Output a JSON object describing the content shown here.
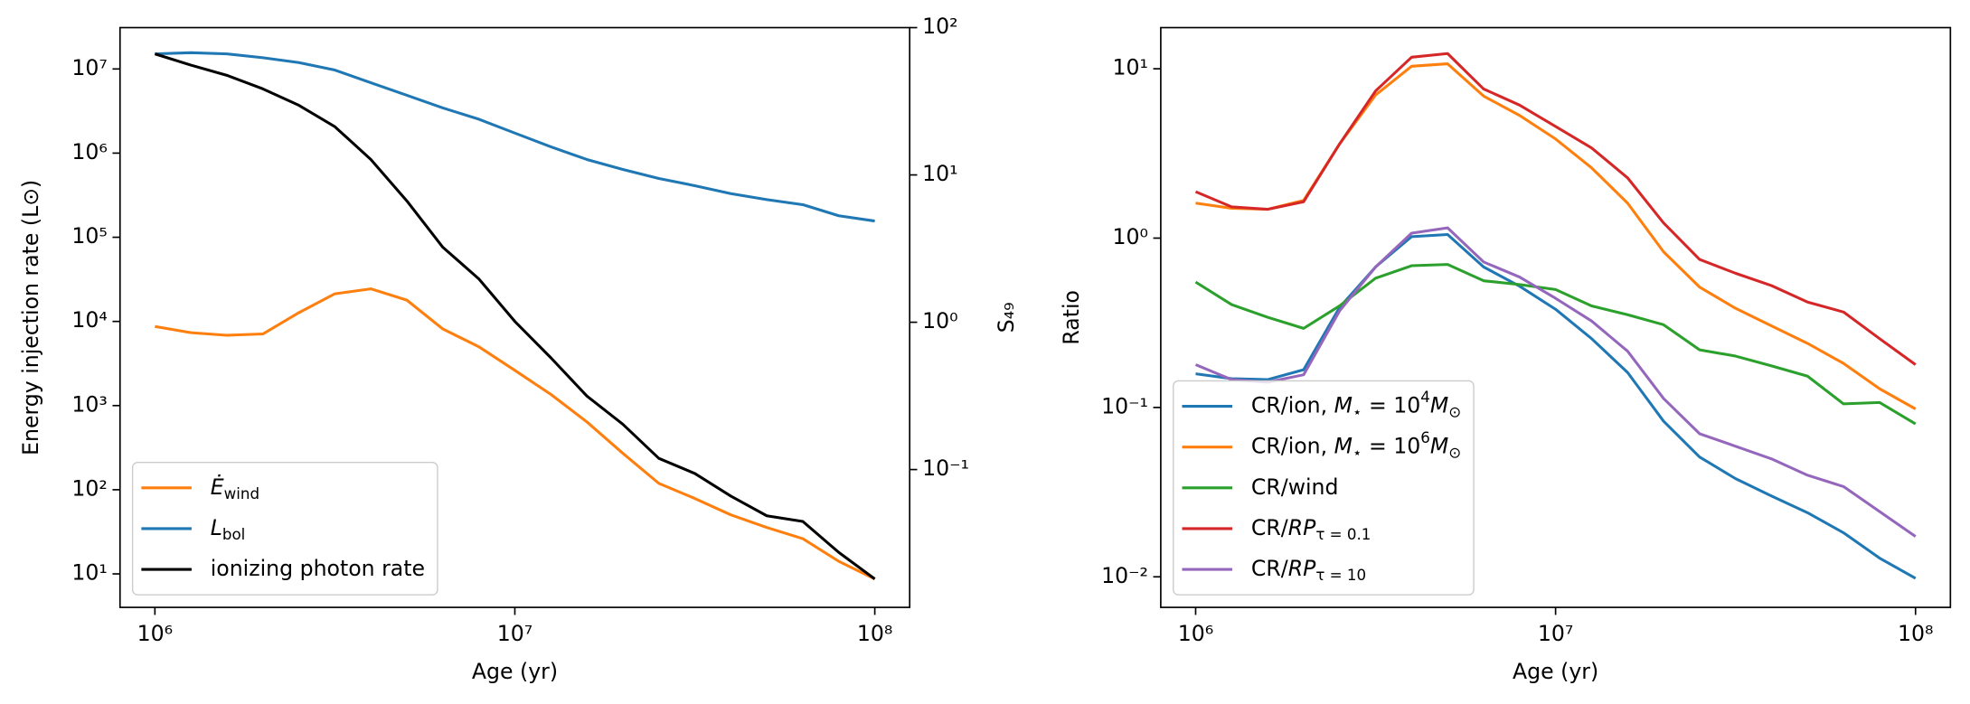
{
  "chart_data": [
    {
      "type": "line",
      "xlabel": "Age (yr)",
      "ylabel": "Energy injection rate (L⊙)",
      "y2label": "S₄₉",
      "xscale": "log",
      "yscale": "log",
      "y2scale": "log",
      "legend": "lower left",
      "xlim": [
        800000,
        125000000
      ],
      "ylim": [
        4,
        31000000
      ],
      "y2lim": [
        0.0116,
        100
      ],
      "xticks": [
        {
          "value": 1000000,
          "label": "10⁶"
        },
        {
          "value": 10000000,
          "label": "10⁷"
        },
        {
          "value": 100000000,
          "label": "10⁸"
        }
      ],
      "yticks": [
        {
          "value": 10,
          "label": "10¹"
        },
        {
          "value": 100,
          "label": "10²"
        },
        {
          "value": 1000,
          "label": "10³"
        },
        {
          "value": 10000,
          "label": "10⁴"
        },
        {
          "value": 100000,
          "label": "10⁵"
        },
        {
          "value": 1000000,
          "label": "10⁶"
        },
        {
          "value": 10000000,
          "label": "10⁷"
        }
      ],
      "y2ticks": [
        {
          "value": 0.1,
          "label": "10⁻¹"
        },
        {
          "value": 1,
          "label": "10⁰"
        },
        {
          "value": 10,
          "label": "10¹"
        },
        {
          "value": 100,
          "label": "10²"
        }
      ],
      "x": [
        1000000,
        1258925,
        1584893,
        1995262,
        2511886,
        3162278,
        3981072,
        5011872,
        6309573,
        7943282,
        10000000,
        12589254,
        15848932,
        19952623,
        25118864,
        31622777,
        39810717,
        50118723,
        63095734,
        79432823,
        100000000
      ],
      "series": [
        {
          "name": [
            {
              "text": "Ė",
              "italic": true
            },
            {
              "text": "wind",
              "sub": true
            }
          ],
          "color": "#ff7f0e",
          "axis": "y",
          "values": [
            8700,
            7350,
            6850,
            7100,
            12700,
            21300,
            24400,
            17900,
            8130,
            5000,
            2620,
            1360,
            640,
            271,
            119,
            78.7,
            50.3,
            35.6,
            26.2,
            14.1,
            8.7
          ]
        },
        {
          "name": [
            {
              "text": "L",
              "italic": true
            },
            {
              "text": "bol",
              "sub": true
            }
          ],
          "color": "#1f77b4",
          "axis": "y",
          "values": [
            15100000,
            15600000,
            15100000,
            13600000,
            11900000,
            9700000,
            6850000,
            4860000,
            3440000,
            2530000,
            1730000,
            1190000,
            840000,
            640000,
            500000,
            410000,
            330000,
            280000,
            244000,
            180000,
            156000
          ]
        },
        {
          "name": [
            {
              "text": "ionizing photon rate"
            }
          ],
          "color": "#000000",
          "axis": "y",
          "values": [
            15100000,
            11100000,
            8400000,
            5800000,
            3700000,
            2060000,
            840000,
            270000,
            76000,
            32000,
            10000,
            3700,
            1300,
            600,
            236,
            156,
            84,
            49,
            42,
            18,
            8.7
          ]
        }
      ]
    },
    {
      "type": "line",
      "xlabel": "Age (yr)",
      "ylabel": "Ratio",
      "xscale": "log",
      "yscale": "log",
      "legend": "lower left",
      "xlim": [
        800000,
        125000000
      ],
      "ylim": [
        0.0066,
        17.5
      ],
      "xticks": [
        {
          "value": 1000000,
          "label": "10⁶"
        },
        {
          "value": 10000000,
          "label": "10⁷"
        },
        {
          "value": 100000000,
          "label": "10⁸"
        }
      ],
      "yticks": [
        {
          "value": 0.01,
          "label": "10⁻²"
        },
        {
          "value": 0.1,
          "label": "10⁻¹"
        },
        {
          "value": 1,
          "label": "10⁰"
        },
        {
          "value": 10,
          "label": "10¹"
        }
      ],
      "x": [
        1000000,
        1258925,
        1584893,
        1995262,
        2511886,
        3162278,
        3981072,
        5011872,
        6309573,
        7943282,
        10000000,
        12589254,
        15848932,
        19952623,
        25118864,
        31622777,
        39810717,
        50118723,
        63095734,
        79432823,
        100000000
      ],
      "series": [
        {
          "name": [
            {
              "text": "CR/ion, "
            },
            {
              "text": "M",
              "italic": true
            },
            {
              "text": "⋆",
              "sub": true
            },
            {
              "text": " = 10"
            },
            {
              "text": "4",
              "sup": true
            },
            {
              "text": "M",
              "italic": true
            },
            {
              "text": "⊙",
              "sub": true
            }
          ],
          "color": "#1f77b4",
          "values": [
            0.158,
            0.148,
            0.146,
            0.167,
            0.39,
            0.676,
            1.02,
            1.05,
            0.676,
            0.52,
            0.38,
            0.255,
            0.161,
            0.083,
            0.051,
            0.038,
            0.03,
            0.0239,
            0.0182,
            0.0129,
            0.0098
          ]
        },
        {
          "name": [
            {
              "text": "CR/ion, "
            },
            {
              "text": "M",
              "italic": true
            },
            {
              "text": "⋆",
              "sub": true
            },
            {
              "text": " = 10"
            },
            {
              "text": "6",
              "sup": true
            },
            {
              "text": "M",
              "italic": true
            },
            {
              "text": "⊙",
              "sub": true
            }
          ],
          "color": "#ff7f0e",
          "values": [
            1.61,
            1.5,
            1.48,
            1.67,
            3.6,
            7.0,
            10.35,
            10.7,
            6.9,
            5.3,
            3.85,
            2.6,
            1.61,
            0.83,
            0.514,
            0.385,
            0.303,
            0.239,
            0.182,
            0.129,
            0.098
          ]
        },
        {
          "name": [
            {
              "text": "CR/wind"
            }
          ],
          "color": "#2ca02c",
          "values": [
            0.55,
            0.405,
            0.341,
            0.293,
            0.398,
            0.58,
            0.687,
            0.699,
            0.56,
            0.532,
            0.497,
            0.398,
            0.353,
            0.308,
            0.219,
            0.201,
            0.176,
            0.153,
            0.105,
            0.107,
            0.08
          ]
        },
        {
          "name": [
            {
              "text": "CR/"
            },
            {
              "text": "RP",
              "italic": true
            },
            {
              "text": "τ = 0.1",
              "sub": true
            }
          ],
          "color": "#d62728",
          "values": [
            1.88,
            1.53,
            1.48,
            1.64,
            3.6,
            7.4,
            11.7,
            12.3,
            7.6,
            6.1,
            4.56,
            3.41,
            2.27,
            1.23,
            0.748,
            0.62,
            0.524,
            0.419,
            0.366,
            0.255,
            0.179
          ]
        },
        {
          "name": [
            {
              "text": "CR/"
            },
            {
              "text": "RP",
              "italic": true
            },
            {
              "text": "τ = 10",
              "sub": true
            }
          ],
          "color": "#9467bd",
          "values": [
            0.179,
            0.146,
            0.141,
            0.156,
            0.372,
            0.676,
            1.07,
            1.15,
            0.723,
            0.589,
            0.441,
            0.324,
            0.215,
            0.113,
            0.07,
            0.059,
            0.0497,
            0.0398,
            0.0341,
            0.0243,
            0.0173
          ]
        }
      ]
    }
  ]
}
